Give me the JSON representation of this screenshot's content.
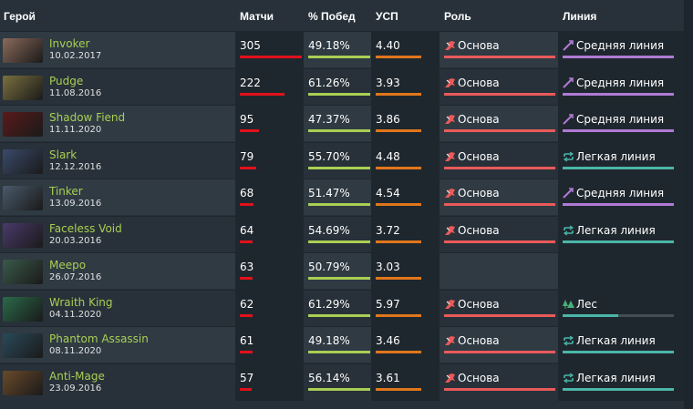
{
  "headers": {
    "hero": "Герой",
    "matches": "Матчи",
    "winrate": "% Побед",
    "kda": "УСП",
    "role": "Роль",
    "lane": "Линия"
  },
  "colors": {
    "matches_bar": "#e0111b",
    "winrate_bar": "#a9cf54",
    "kda_bar": "#e0761b",
    "role_bar": "#ea5a5a",
    "mid_bar": "#b07ad4",
    "safe_bar": "#4ab6a8"
  },
  "max_matches": 305,
  "rows": [
    {
      "name": "Invoker",
      "date": "10.02.2017",
      "matches": "305",
      "winrate": "49.18%",
      "kda": "4.40",
      "role": "Основа",
      "role_level": 1.0,
      "lane": "Средняя линия",
      "lane_type": "mid",
      "lane_level": 1.0,
      "avatar": "#8a6a5a"
    },
    {
      "name": "Pudge",
      "date": "11.08.2016",
      "matches": "222",
      "winrate": "61.26%",
      "kda": "3.93",
      "role": "Основа",
      "role_level": 1.0,
      "lane": "Средняя линия",
      "lane_type": "mid",
      "lane_level": 1.0,
      "avatar": "#7a7040"
    },
    {
      "name": "Shadow Fiend",
      "date": "11.11.2020",
      "matches": "95",
      "winrate": "47.37%",
      "kda": "3.86",
      "role": "Основа",
      "role_level": 1.0,
      "lane": "Средняя линия",
      "lane_type": "mid",
      "lane_level": 1.0,
      "avatar": "#5a1a1a"
    },
    {
      "name": "Slark",
      "date": "12.12.2016",
      "matches": "79",
      "winrate": "55.70%",
      "kda": "4.48",
      "role": "Основа",
      "role_level": 1.0,
      "lane": "Легкая линия",
      "lane_type": "safe",
      "lane_level": 1.0,
      "avatar": "#3a4a6a"
    },
    {
      "name": "Tinker",
      "date": "13.09.2016",
      "matches": "68",
      "winrate": "51.47%",
      "kda": "4.54",
      "role": "Основа",
      "role_level": 1.0,
      "lane": "Средняя линия",
      "lane_type": "mid",
      "lane_level": 1.0,
      "avatar": "#4a5a6a"
    },
    {
      "name": "Faceless Void",
      "date": "20.03.2016",
      "matches": "64",
      "winrate": "54.69%",
      "kda": "3.72",
      "role": "Основа",
      "role_level": 1.0,
      "lane": "Легкая линия",
      "lane_type": "safe",
      "lane_level": 1.0,
      "avatar": "#4a3a6a"
    },
    {
      "name": "Meepo",
      "date": "26.07.2016",
      "matches": "63",
      "winrate": "50.79%",
      "kda": "3.03",
      "role": "",
      "role_level": 0,
      "lane": "",
      "lane_type": "",
      "lane_level": 0,
      "avatar": "#3a5a4a"
    },
    {
      "name": "Wraith King",
      "date": "04.11.2020",
      "matches": "62",
      "winrate": "61.29%",
      "kda": "5.97",
      "role": "Основа",
      "role_level": 1.0,
      "lane": "Лес",
      "lane_type": "jungle",
      "lane_level": 0.5,
      "avatar": "#2a6a4a"
    },
    {
      "name": "Phantom Assassin",
      "date": "08.11.2020",
      "matches": "61",
      "winrate": "49.18%",
      "kda": "3.46",
      "role": "Основа",
      "role_level": 1.0,
      "lane": "Легкая линия",
      "lane_type": "safe",
      "lane_level": 1.0,
      "avatar": "#2a4a5a"
    },
    {
      "name": "Anti-Mage",
      "date": "23.09.2016",
      "matches": "57",
      "winrate": "56.14%",
      "kda": "3.61",
      "role": "Основа",
      "role_level": 1.0,
      "lane": "Легкая линия",
      "lane_type": "safe",
      "lane_level": 1.0,
      "avatar": "#6a4a2a"
    }
  ]
}
